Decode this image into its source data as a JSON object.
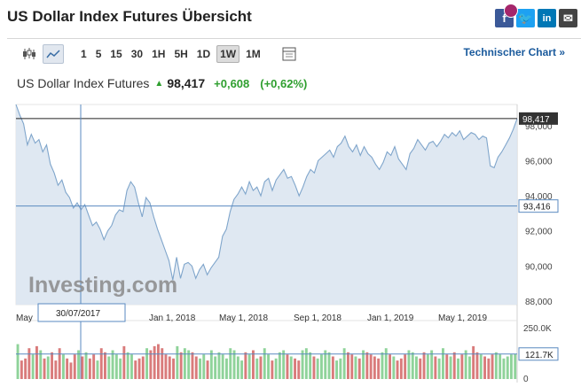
{
  "page": {
    "title": "US Dollar Index Futures Übersicht",
    "technical_chart_link": "Technischer Chart",
    "social_icons": [
      "facebook-icon",
      "twitter-icon",
      "linkedin-icon",
      "mail-icon"
    ]
  },
  "toolbar": {
    "timeframes": [
      "1",
      "5",
      "15",
      "30",
      "1H",
      "5H",
      "1D",
      "1W",
      "1M"
    ],
    "selected_timeframe": "1W",
    "icons": [
      "candlestick-chart-icon",
      "line-chart-icon",
      "settings-panel-icon"
    ]
  },
  "quote": {
    "name": "US Dollar Index Futures",
    "price": "98,417",
    "change": "+0,608",
    "change_pct": "(+0,62%)",
    "up_color": "#2f9f2f"
  },
  "chart_data": {
    "type": "area",
    "watermark": "Investing.com",
    "x_tick_labels": [
      "May",
      "Jan 1, 2018",
      "May 1, 2018",
      "Sep 1, 2018",
      "Jan 1, 2019",
      "May 1, 2019"
    ],
    "y_tick_labels": [
      "98,000",
      "96,000",
      "94,000",
      "92,000",
      "90,000",
      "88,000"
    ],
    "ylim": [
      87.8,
      99.2
    ],
    "last_price_label": "98,417",
    "crosshair_price_label": "93,416",
    "crosshair_date_label": "30/07/2017",
    "series": [
      {
        "values": [
          99.2,
          98.6,
          98.1,
          96.9,
          97.5,
          97.0,
          97.2,
          96.5,
          96.9,
          95.8,
          95.3,
          94.6,
          94.9,
          94.2,
          93.9,
          93.3,
          93.6,
          93.2,
          93.5,
          92.9,
          92.3,
          92.5,
          92.1,
          91.5,
          92.0,
          92.3,
          92.9,
          93.2,
          93.1,
          94.3,
          94.8,
          94.5,
          93.6,
          92.8,
          93.9,
          93.6,
          92.8,
          92.1,
          91.5,
          90.9,
          90.3,
          89.2,
          90.5,
          89.3,
          90.1,
          90.2,
          90.0,
          89.3,
          89.8,
          90.1,
          89.5,
          89.9,
          90.2,
          90.5,
          91.7,
          92.1,
          93.1,
          93.8,
          94.1,
          94.5,
          94.1,
          94.8,
          94.3,
          94.5,
          94.0,
          94.8,
          95.0,
          94.3,
          94.9,
          95.2,
          95.5,
          95.0,
          95.1,
          94.6,
          94.0,
          94.5,
          95.1,
          95.5,
          95.3,
          96.0,
          96.2,
          96.4,
          96.6,
          96.2,
          96.8,
          97.0,
          97.4,
          96.8,
          96.5,
          96.9,
          96.3,
          96.8,
          96.4,
          96.2,
          95.8,
          95.5,
          95.9,
          96.5,
          96.3,
          96.8,
          96.1,
          95.8,
          95.5,
          96.4,
          96.7,
          97.2,
          96.9,
          96.6,
          97.0,
          97.1,
          96.8,
          97.1,
          97.5,
          97.3,
          97.6,
          97.4,
          97.7,
          97.2,
          97.4,
          97.6,
          97.5,
          97.2,
          97.4,
          97.3,
          95.7,
          95.6,
          96.2,
          96.5,
          96.9,
          97.3,
          97.8,
          98.4
        ]
      }
    ],
    "volume": {
      "y_tick_labels": [
        "250.0K",
        "0"
      ],
      "last_volume_label": "121.7K",
      "up_color": "#8fd39a",
      "down_color": "#d97b7b",
      "values": [
        170,
        90,
        100,
        150,
        120,
        160,
        140,
        100,
        110,
        130,
        90,
        150,
        120,
        100,
        80,
        120,
        140,
        110,
        130,
        100,
        120,
        90,
        150,
        130,
        110,
        140,
        120,
        100,
        160,
        130,
        120,
        90,
        100,
        110,
        150,
        140,
        160,
        170,
        150,
        120,
        110,
        100,
        160,
        130,
        150,
        140,
        130,
        110,
        100,
        120,
        90,
        140,
        110,
        130,
        120,
        100,
        150,
        140,
        110,
        90,
        130,
        120,
        140,
        100,
        110,
        150,
        120,
        90,
        100,
        130,
        140,
        120,
        110,
        100,
        90,
        140,
        150,
        130,
        110,
        100,
        120,
        140,
        130,
        110,
        90,
        100,
        150,
        130,
        120,
        110,
        100,
        140,
        130,
        120,
        110,
        100,
        130,
        150,
        120,
        110,
        90,
        100,
        120,
        140,
        130,
        110,
        100,
        130,
        120,
        140,
        110,
        100,
        150,
        120,
        110,
        130,
        100,
        120,
        140,
        110,
        160,
        130,
        120,
        110,
        100,
        120,
        130,
        120,
        100,
        110,
        120,
        122
      ]
    }
  }
}
